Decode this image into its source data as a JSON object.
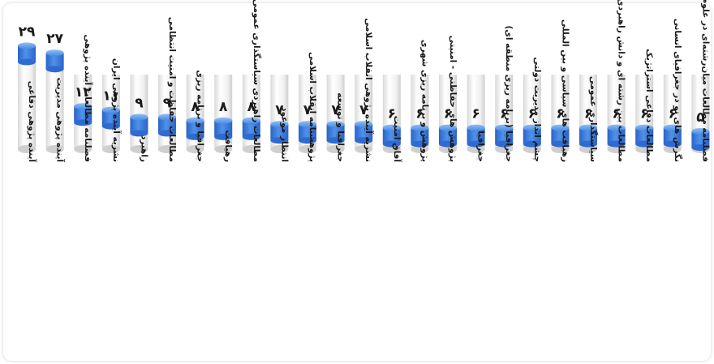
{
  "chart_data": {
    "type": "bar",
    "ylim": [
      0,
      30
    ],
    "colors": {
      "bar_top": "#2e6fd6",
      "bar_top_light": "#5b9bf0",
      "cylinder_body": "#f2f2f2",
      "cylinder_edge": "#c8c8c8"
    },
    "categories": [
      "آینده پژوهی دفاعی",
      "آینده پژوهی مدیریت",
      "فصلنامه مطالعات آینده پژوهی",
      "نشریه آینده پژوهی ایران",
      "راهبرد",
      "مطالعات حفاظت و امنیت انتظامی",
      "جغرافیا و برنامه ریزی",
      "رهیافت",
      "مطالعات راهبردی سیاستگذاری عمومی",
      "انتظار موعود",
      "پژوهشنامه انقلاب اسلامی",
      "جغرافیا و توسعه",
      "نشریه آینده پژوهی انقلاب اسلامی",
      "آفاق امنیت",
      "پژوهش و برنامه ریزی شهری",
      "پژوهش های حفاظتی - امنیتی",
      "جغرافیا",
      "جغرافیا (برنامه ریزی منطقه ای)",
      "چشم انداز مدیریت دولتی",
      "رهیافت های سیاسی و بین المللی",
      "سیاستگذاری عمومی",
      "مطالعات بین رشته ای و دانش راهبردی",
      "مطالعات دفاعی استراتژیک",
      "نگرش های نو در جغرافیای انسانی",
      "فصلنامه مطالعات میان‌رشته‌ای در علوم انسانی"
    ],
    "values": [
      29,
      27,
      12,
      11,
      9,
      9,
      8,
      8,
      8,
      7,
      7,
      7,
      7,
      6,
      6,
      6,
      6,
      6,
      6,
      6,
      6,
      6,
      6,
      6,
      5
    ],
    "value_labels": [
      "۲۹",
      "۲۷",
      "۱۲",
      "۱۱",
      "۹",
      "۹",
      "۸",
      "۸",
      "۸",
      "۷",
      "۷",
      "۷",
      "۷",
      "۶",
      "۶",
      "۶",
      "۶",
      "۶",
      "۶",
      "۶",
      "۶",
      "۶",
      "۶",
      "۶",
      "۵"
    ]
  }
}
